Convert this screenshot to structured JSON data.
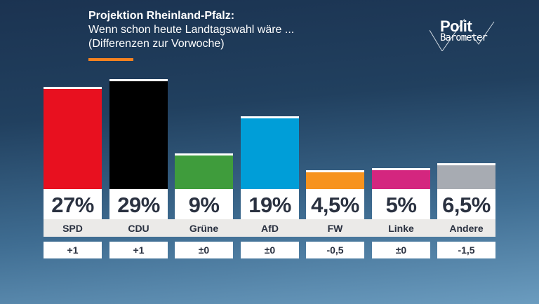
{
  "header": {
    "title": "Projektion Rheinland-Pfalz:",
    "subtitle": "Wenn schon heute Landtagswahl wäre ...",
    "note": "(Differenzen zur Vorwoche)",
    "accent_color": "#f58220"
  },
  "logo": {
    "line1": "Polit",
    "line2": "Barometer"
  },
  "chart_data": {
    "type": "bar",
    "categories": [
      "SPD",
      "CDU",
      "Grüne",
      "AfD",
      "FW",
      "Linke",
      "Andere"
    ],
    "values": [
      27,
      29,
      9,
      19,
      4.5,
      5,
      6.5
    ],
    "value_labels": [
      "27%",
      "29%",
      "9%",
      "19%",
      "4,5%",
      "5%",
      "6,5%"
    ],
    "changes": [
      "+1",
      "+1",
      "±0",
      "±0",
      "-0,5",
      "±0",
      "-1,5"
    ],
    "colors": [
      "#e8101f",
      "#000000",
      "#3f9c3c",
      "#009ed8",
      "#f7931e",
      "#d4267f",
      "#a7abb2"
    ],
    "unit": "%"
  }
}
